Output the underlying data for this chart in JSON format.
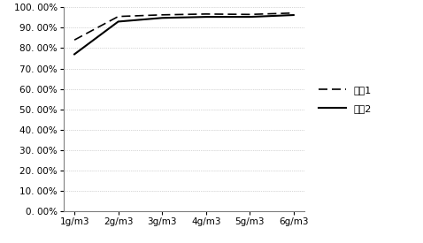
{
  "x_labels": [
    "1g/m3",
    "2g/m3",
    "3g/m3",
    "4g/m3",
    "5g/m3",
    "6g/m3"
  ],
  "series1": [
    0.84,
    0.955,
    0.963,
    0.967,
    0.965,
    0.972
  ],
  "series2": [
    0.77,
    0.93,
    0.948,
    0.953,
    0.953,
    0.962
  ],
  "legend1": "组列1",
  "legend2": "组列2",
  "ylim": [
    0.0,
    1.0
  ],
  "yticks": [
    0.0,
    0.1,
    0.2,
    0.3,
    0.4,
    0.5,
    0.6,
    0.7,
    0.8,
    0.9,
    1.0
  ],
  "line_color": "#000000",
  "bg_color": "#ffffff",
  "grid_color": "#b0b0b0"
}
